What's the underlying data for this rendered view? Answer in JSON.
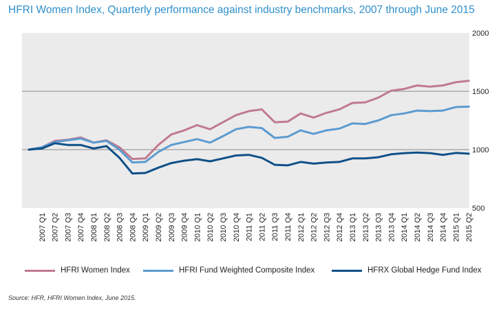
{
  "title": "HFRI Women Index, Quarterly performance against industry benchmarks, 2007 through June 2015",
  "source": "Source: HFR, HFRI Women Index, June 2015.",
  "chart_data": {
    "type": "line",
    "title": "HFRI Women Index, Quarterly performance against industry benchmarks, 2007 through June 2015",
    "xlabel": "",
    "ylabel": "",
    "ylim": [
      500,
      2000
    ],
    "yticks": [
      500,
      1000,
      1500,
      2000
    ],
    "y_axis_side": "right",
    "grid": "horizontal",
    "legend_position": "bottom",
    "categories": [
      "2007 Q1",
      "2007 Q2",
      "2007 Q3",
      "2007 Q4",
      "2008 Q1",
      "2008 Q2",
      "2008 Q3",
      "2008 Q4",
      "2009 Q1",
      "2009 Q2",
      "2009 Q3",
      "2009 Q4",
      "2010 Q1",
      "2010 Q2",
      "2010 Q3",
      "2010 Q4",
      "2011 Q1",
      "2011 Q2",
      "2011 Q3",
      "2011 Q4",
      "2012 Q1",
      "2012 Q2",
      "2012 Q3",
      "2012 Q4",
      "2013 Q1",
      "2013 Q2",
      "2013 Q3",
      "2013 Q4",
      "2014 Q1",
      "2014 Q2",
      "2014 Q3",
      "2014 Q4",
      "2015 Q1",
      "2015 Q2"
    ],
    "x_origin_value": 1000,
    "series": [
      {
        "name": "HFRI Women Index",
        "color": "#c07a8e",
        "values": [
          1020,
          1075,
          1085,
          1105,
          1060,
          1080,
          1020,
          920,
          925,
          1040,
          1130,
          1165,
          1210,
          1175,
          1235,
          1295,
          1330,
          1345,
          1235,
          1240,
          1310,
          1275,
          1315,
          1345,
          1400,
          1405,
          1445,
          1505,
          1520,
          1550,
          1540,
          1550,
          1578,
          1590
        ]
      },
      {
        "name": "HFRI Fund Weighted Composite Index",
        "color": "#5b9bd0",
        "values": [
          1020,
          1065,
          1080,
          1095,
          1060,
          1075,
          1000,
          890,
          895,
          980,
          1040,
          1065,
          1090,
          1060,
          1115,
          1175,
          1195,
          1185,
          1100,
          1110,
          1165,
          1135,
          1165,
          1180,
          1225,
          1220,
          1250,
          1295,
          1310,
          1335,
          1330,
          1335,
          1365,
          1368
        ]
      },
      {
        "name": "HFRX Global Hedge Fund Index",
        "color": "#0e4f88",
        "values": [
          1010,
          1055,
          1040,
          1040,
          1010,
          1030,
          930,
          795,
          800,
          845,
          885,
          905,
          918,
          900,
          925,
          950,
          955,
          930,
          870,
          865,
          895,
          880,
          890,
          895,
          925,
          925,
          935,
          960,
          970,
          975,
          970,
          955,
          972,
          965
        ]
      }
    ]
  }
}
